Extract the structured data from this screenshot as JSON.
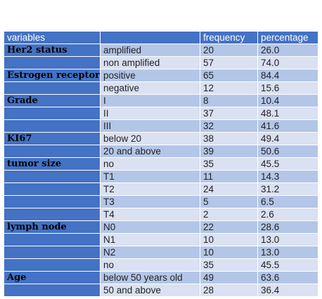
{
  "table": {
    "headers": [
      "variables",
      "",
      "frequency",
      "percentage"
    ],
    "rows": [
      {
        "variable": "Her2 status",
        "category": "amplified",
        "frequency": "20",
        "percentage": "26.0"
      },
      {
        "variable": "",
        "category": "non amplified",
        "frequency": "57",
        "percentage": "74.0"
      },
      {
        "variable": "Estrogen receptor",
        "category": "positive",
        "frequency": "65",
        "percentage": "84.4"
      },
      {
        "variable": "",
        "category": "negative",
        "frequency": "12",
        "percentage": "15.6"
      },
      {
        "variable": "Grade",
        "category": "I",
        "frequency": "8",
        "percentage": "10.4"
      },
      {
        "variable": "",
        "category": "II",
        "frequency": "37",
        "percentage": "48.1"
      },
      {
        "variable": "",
        "category": "III",
        "frequency": "32",
        "percentage": "41.6"
      },
      {
        "variable": "KI67",
        "category": "below 20",
        "frequency": "38",
        "percentage": "49.4"
      },
      {
        "variable": "",
        "category": "20 and above",
        "frequency": "39",
        "percentage": "50.6"
      },
      {
        "variable": "tumor size",
        "category": "no",
        "frequency": "35",
        "percentage": "45.5"
      },
      {
        "variable": "",
        "category": "T1",
        "frequency": "11",
        "percentage": "14.3"
      },
      {
        "variable": "",
        "category": "T2",
        "frequency": "24",
        "percentage": "31.2"
      },
      {
        "variable": "",
        "category": "T3",
        "frequency": "5",
        "percentage": "6.5"
      },
      {
        "variable": "",
        "category": "T4",
        "frequency": "2",
        "percentage": "2.6"
      },
      {
        "variable": "lymph node",
        "category": "N0",
        "frequency": "22",
        "percentage": "28.6"
      },
      {
        "variable": "",
        "category": "N1",
        "frequency": "10",
        "percentage": "13.0"
      },
      {
        "variable": "",
        "category": "N2",
        "frequency": "10",
        "percentage": "13.0"
      },
      {
        "variable": "",
        "category": "no",
        "frequency": "35",
        "percentage": "45.5"
      },
      {
        "variable": "Age",
        "category": "below 50 years old",
        "frequency": "49",
        "percentage": "63.6"
      },
      {
        "variable": "",
        "category": "50 and above",
        "frequency": "28",
        "percentage": "36.4"
      }
    ]
  },
  "colors": {
    "header": "#4472c4",
    "row_dark": "#b4c6e7",
    "row_light": "#d9e1f2"
  }
}
